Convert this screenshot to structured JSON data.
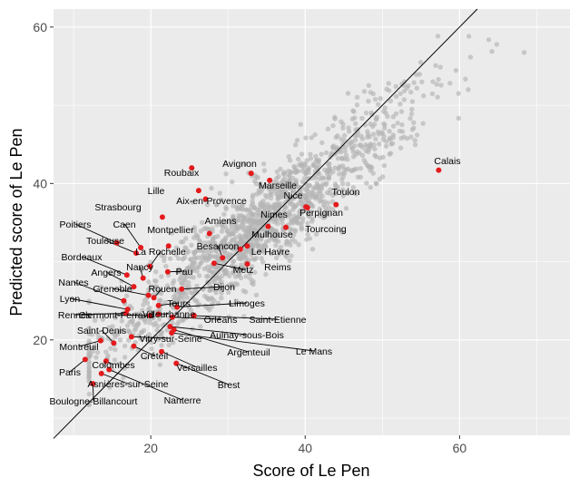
{
  "chart_data": {
    "type": "scatter",
    "xlabel": "Score of Le Pen",
    "ylabel": "Predicted score of Le Pen",
    "xlim": [
      7.4,
      74.3
    ],
    "ylim": [
      7.8,
      62.3
    ],
    "xticks": [
      20,
      40,
      60
    ],
    "yticks": [
      20,
      40,
      60
    ],
    "grid": true,
    "reference_line": {
      "slope": 1,
      "intercept": 0
    },
    "background_points_note": "~1500 grey municipalities, cloud along y≈x from x≈12 to x≈73",
    "colors": {
      "panel": "#ebebeb",
      "grid": "#ffffff",
      "background_point": "#b3b3b3",
      "highlight_point": "#e41a1c",
      "line": "#000000"
    },
    "cities": [
      {
        "name": "Calais",
        "x": 57.3,
        "y": 41.7
      },
      {
        "name": "Roubaix",
        "x": 25.3,
        "y": 42.0
      },
      {
        "name": "Avignon",
        "x": 33.0,
        "y": 41.3
      },
      {
        "name": "Marseille",
        "x": 35.4,
        "y": 40.4
      },
      {
        "name": "Lille",
        "x": 26.2,
        "y": 39.1
      },
      {
        "name": "Aix-en-Provence",
        "x": 27.1,
        "y": 38.0
      },
      {
        "name": "Toulon",
        "x": 44.0,
        "y": 37.3
      },
      {
        "name": "Nice",
        "x": 40.1,
        "y": 37.0
      },
      {
        "name": "Perpignan",
        "x": 40.3,
        "y": 36.9
      },
      {
        "name": "Strasbourg",
        "x": 21.5,
        "y": 35.7
      },
      {
        "name": "Nimes",
        "x": 35.2,
        "y": 34.5
      },
      {
        "name": "Tourcoing",
        "x": 37.5,
        "y": 34.4
      },
      {
        "name": "Amiens",
        "x": 27.6,
        "y": 33.6
      },
      {
        "name": "Poitiers",
        "x": 15.6,
        "y": 32.4
      },
      {
        "name": "Caen",
        "x": 18.7,
        "y": 31.8
      },
      {
        "name": "Montpellier",
        "x": 22.3,
        "y": 32.0
      },
      {
        "name": "Mulhouse",
        "x": 31.6,
        "y": 31.6
      },
      {
        "name": "Le Havre",
        "x": 32.5,
        "y": 32.0
      },
      {
        "name": "Toulouse",
        "x": 18.1,
        "y": 31.1
      },
      {
        "name": "La Rochelle",
        "x": 19.9,
        "y": 29.4
      },
      {
        "name": "Besancon",
        "x": 29.3,
        "y": 30.5
      },
      {
        "name": "Bordeaux",
        "x": 16.9,
        "y": 28.3
      },
      {
        "name": "Metz",
        "x": 28.2,
        "y": 29.8
      },
      {
        "name": "Reims",
        "x": 32.5,
        "y": 29.7
      },
      {
        "name": "Nancy",
        "x": 19.0,
        "y": 27.9
      },
      {
        "name": "Pau",
        "x": 22.2,
        "y": 28.7
      },
      {
        "name": "Angers",
        "x": 17.8,
        "y": 26.8
      },
      {
        "name": "Nantes",
        "x": 16.5,
        "y": 25.0
      },
      {
        "name": "Grenoble",
        "x": 19.7,
        "y": 25.7
      },
      {
        "name": "Dijon",
        "x": 24.0,
        "y": 26.5
      },
      {
        "name": "Rouen",
        "x": 20.4,
        "y": 25.4
      },
      {
        "name": "Lyon",
        "x": 17.0,
        "y": 23.9
      },
      {
        "name": "Tours",
        "x": 21.0,
        "y": 24.4
      },
      {
        "name": "Limoges",
        "x": 23.4,
        "y": 24.2
      },
      {
        "name": "Rennes",
        "x": 16.8,
        "y": 23.4
      },
      {
        "name": "Clermont-Ferrand",
        "x": 19.9,
        "y": 23.1
      },
      {
        "name": "Villeurbanne",
        "x": 21.0,
        "y": 23.3
      },
      {
        "name": "Orléans",
        "x": 22.8,
        "y": 22.9
      },
      {
        "name": "Saint-Etienne",
        "x": 25.6,
        "y": 23.1
      },
      {
        "name": "Saint-Denis",
        "x": 15.2,
        "y": 19.6
      },
      {
        "name": "Aulnay-sous-Bois",
        "x": 22.5,
        "y": 21.7
      },
      {
        "name": "Vitry-sur-Seine",
        "x": 17.5,
        "y": 20.4
      },
      {
        "name": "Montreuil",
        "x": 13.5,
        "y": 19.9
      },
      {
        "name": "Argenteuil",
        "x": 23.0,
        "y": 21.3
      },
      {
        "name": "Le Mans",
        "x": 22.7,
        "y": 20.9
      },
      {
        "name": "Créteil",
        "x": 17.8,
        "y": 19.2
      },
      {
        "name": "Colombes",
        "x": 14.2,
        "y": 17.3
      },
      {
        "name": "Versailles",
        "x": 21.4,
        "y": 18.5
      },
      {
        "name": "Paris",
        "x": 11.5,
        "y": 17.5
      },
      {
        "name": "Brest",
        "x": 23.3,
        "y": 17.0
      },
      {
        "name": "Asnières-sur-Seine",
        "x": 13.6,
        "y": 15.7
      },
      {
        "name": "Nanterre",
        "x": 14.6,
        "y": 16.2
      },
      {
        "name": "Boulogne-Billancourt",
        "x": 12.5,
        "y": 14.4
      }
    ]
  }
}
